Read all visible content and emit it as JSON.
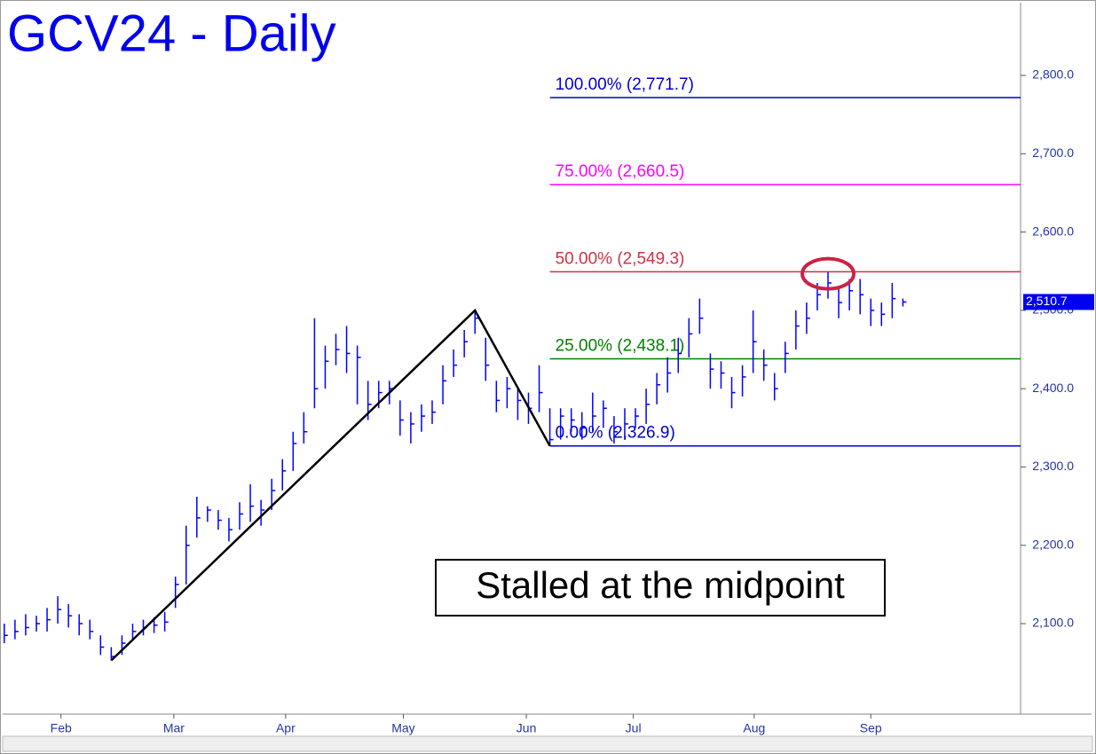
{
  "chart_data": {
    "type": "ohlc",
    "title": "GCV24 - Daily",
    "annotation": "Stalled at the midpoint",
    "series": [
      {
        "color": "#0000ff",
        "high": [
          2100,
          2105,
          2112,
          2110,
          2120,
          2135,
          2125,
          2112,
          2105,
          2085,
          2070,
          2085,
          2100,
          2105,
          2108,
          2115,
          2160,
          2225,
          2262,
          2250,
          2245,
          2235,
          2255,
          2278,
          2258,
          2285,
          2310,
          2345,
          2370,
          2490,
          2455,
          2470,
          2480,
          2455,
          2410,
          2410,
          2410,
          2385,
          2370,
          2380,
          2385,
          2430,
          2450,
          2475,
          2500,
          2465,
          2410,
          2415,
          2400,
          2395,
          2430,
          2375,
          2375,
          2375,
          2370,
          2395,
          2385,
          2365,
          2375,
          2375,
          2400,
          2420,
          2440,
          2465,
          2490,
          2515,
          2445,
          2435,
          2415,
          2430,
          2500,
          2450,
          2420,
          2460,
          2500,
          2510,
          2535,
          2549,
          2530,
          2540,
          2540,
          2515,
          2510,
          2535,
          2515
        ],
        "low": [
          2075,
          2080,
          2085,
          2090,
          2090,
          2100,
          2095,
          2085,
          2080,
          2060,
          2053,
          2060,
          2080,
          2085,
          2088,
          2090,
          2120,
          2150,
          2210,
          2230,
          2220,
          2205,
          2220,
          2230,
          2225,
          2245,
          2270,
          2295,
          2330,
          2375,
          2400,
          2430,
          2420,
          2380,
          2360,
          2375,
          2380,
          2340,
          2330,
          2345,
          2355,
          2380,
          2415,
          2440,
          2470,
          2410,
          2370,
          2375,
          2360,
          2355,
          2370,
          2326.9,
          2335,
          2345,
          2335,
          2345,
          2350,
          2330,
          2335,
          2350,
          2355,
          2380,
          2395,
          2420,
          2440,
          2470,
          2400,
          2400,
          2375,
          2390,
          2420,
          2410,
          2385,
          2420,
          2450,
          2470,
          2500,
          2515,
          2490,
          2500,
          2495,
          2480,
          2480,
          2490,
          2505
        ],
        "close": [
          2085,
          2090,
          2095,
          2100,
          2105,
          2118,
          2110,
          2100,
          2090,
          2070,
          2058,
          2075,
          2090,
          2095,
          2098,
          2102,
          2150,
          2200,
          2235,
          2245,
          2232,
          2220,
          2240,
          2250,
          2245,
          2270,
          2295,
          2330,
          2345,
          2400,
          2435,
          2450,
          2445,
          2440,
          2380,
          2395,
          2400,
          2360,
          2355,
          2365,
          2370,
          2410,
          2430,
          2460,
          2490,
          2430,
          2385,
          2400,
          2385,
          2375,
          2395,
          2335,
          2365,
          2360,
          2350,
          2365,
          2375,
          2345,
          2355,
          2365,
          2380,
          2405,
          2420,
          2445,
          2470,
          2490,
          2425,
          2420,
          2395,
          2415,
          2460,
          2430,
          2400,
          2445,
          2480,
          2490,
          2520,
          2535,
          2510,
          2525,
          2520,
          2500,
          2495,
          2515,
          2510.7
        ]
      }
    ],
    "zigzag": {
      "x": [
        10,
        44,
        51
      ],
      "y": [
        2053,
        2500,
        2326.9
      ],
      "color": "#000000"
    },
    "fib_levels": [
      {
        "label": "100.00% (2,771.7)",
        "value": 2771.7,
        "color": "#0000cc"
      },
      {
        "label": "75.00% (2,660.5)",
        "value": 2660.5,
        "color": "#ff00ff"
      },
      {
        "label": "50.00% (2,549.3)",
        "value": 2549.3,
        "color": "#cc3344"
      },
      {
        "label": "25.00% (2,438.1)",
        "value": 2438.1,
        "color": "#008000"
      },
      {
        "label": "0.00% (2,326.9)",
        "value": 2326.9,
        "color": "#0000cc"
      }
    ],
    "last_price": {
      "value": 2510.7,
      "label": "2,510.7"
    },
    "ylim": [
      1984.5,
      2892.9
    ],
    "yticks": [
      {
        "value": 2100,
        "label": "2,100.0"
      },
      {
        "value": 2200,
        "label": "2,200.0"
      },
      {
        "value": 2300,
        "label": "2,300.0"
      },
      {
        "value": 2400,
        "label": "2,400.0"
      },
      {
        "value": 2500,
        "label": "2,500.0"
      },
      {
        "value": 2600,
        "label": "2,600.0"
      },
      {
        "value": 2700,
        "label": "2,700.0"
      },
      {
        "value": 2800,
        "label": "2,800.0"
      }
    ],
    "xlim": [
      -0.4,
      95
    ],
    "xticks": [
      {
        "value": 5.3,
        "label": "Feb"
      },
      {
        "value": 15.85,
        "label": "Mar"
      },
      {
        "value": 26.3,
        "label": "Apr"
      },
      {
        "value": 37.3,
        "label": "May"
      },
      {
        "value": 48.8,
        "label": "Jun"
      },
      {
        "value": 58.8,
        "label": "Jul"
      },
      {
        "value": 70.1,
        "label": "Aug"
      },
      {
        "value": 81,
        "label": "Sep"
      }
    ]
  }
}
